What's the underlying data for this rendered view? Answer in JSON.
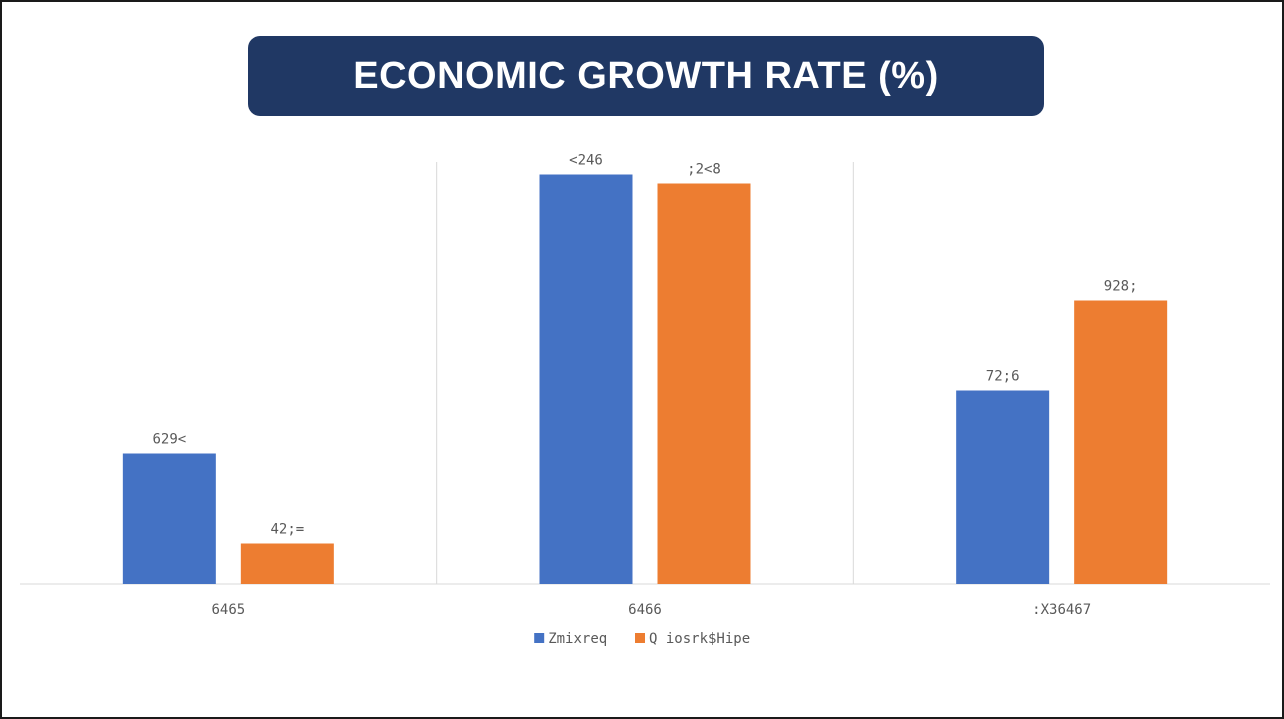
{
  "title": "ECONOMIC GROWTH RATE (%)",
  "chart_data": {
    "type": "bar",
    "title": "",
    "xlabel": "",
    "ylabel": "",
    "categories": [
      "6465",
      "6466",
      ":X36467"
    ],
    "series": [
      {
        "name": "Zmixreq",
        "color": "#4472C4",
        "values": [
          2.9,
          9.1,
          4.3
        ],
        "labels": [
          "629<",
          "<246",
          "72;6"
        ]
      },
      {
        "name": "Q iosrk$Hipe",
        "color": "#ED7D31",
        "values": [
          0.9,
          8.9,
          6.3
        ],
        "labels": [
          "42;=",
          ";2<8",
          "928;"
        ]
      }
    ],
    "ylim": [
      0,
      10
    ],
    "grid": false,
    "legend": "bottom",
    "category_separators": true
  }
}
